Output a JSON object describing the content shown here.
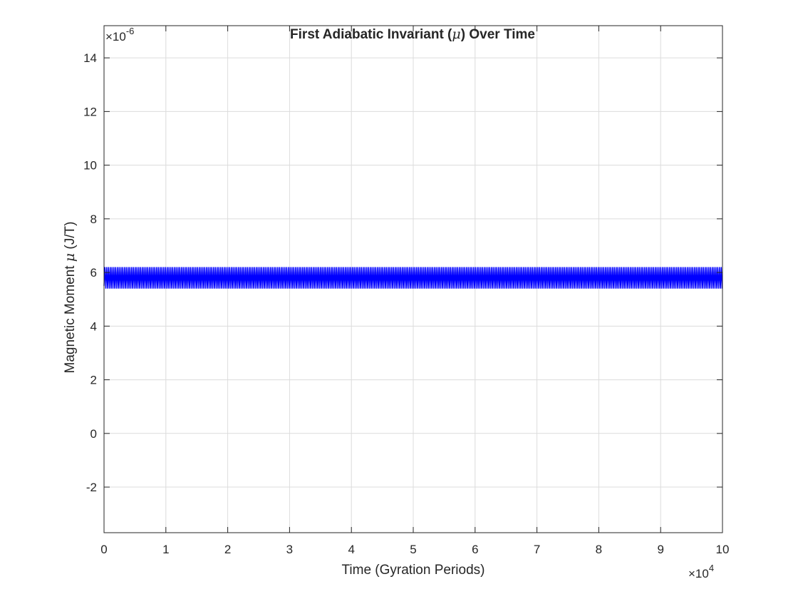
{
  "chart_data": {
    "type": "line",
    "title_parts": [
      "First Adiabatic Invariant (",
      "μ",
      ") Over Time"
    ],
    "xlabel": "Time (Gyration Periods)",
    "ylabel_parts": [
      "Magnetic Moment ",
      "μ",
      " (J/T)"
    ],
    "x_exponent_label": {
      "base": "×10",
      "exp": "4"
    },
    "y_exponent_label": {
      "base": "×10",
      "exp": "-6"
    },
    "xlim": [
      0,
      100000
    ],
    "ylim": [
      -3.7e-06,
      1.52e-05
    ],
    "x_ticks": [
      0,
      10000,
      20000,
      30000,
      40000,
      50000,
      60000,
      70000,
      80000,
      90000,
      100000
    ],
    "x_tick_labels": [
      "0",
      "1",
      "2",
      "3",
      "4",
      "5",
      "6",
      "7",
      "8",
      "9",
      "10"
    ],
    "y_ticks": [
      -2e-06,
      0,
      2e-06,
      4e-06,
      6e-06,
      8e-06,
      1e-05,
      1.2e-05,
      1.4e-05
    ],
    "y_tick_labels": [
      "-2",
      "0",
      "2",
      "4",
      "6",
      "8",
      "10",
      "12",
      "14"
    ],
    "grid": true,
    "series": [
      {
        "color": "#0000ff",
        "x_range": [
          0,
          100000
        ],
        "oscillation_min": 5.4e-06,
        "oscillation_max": 6.2e-06,
        "start_value": 5.5e-06
      }
    ]
  }
}
